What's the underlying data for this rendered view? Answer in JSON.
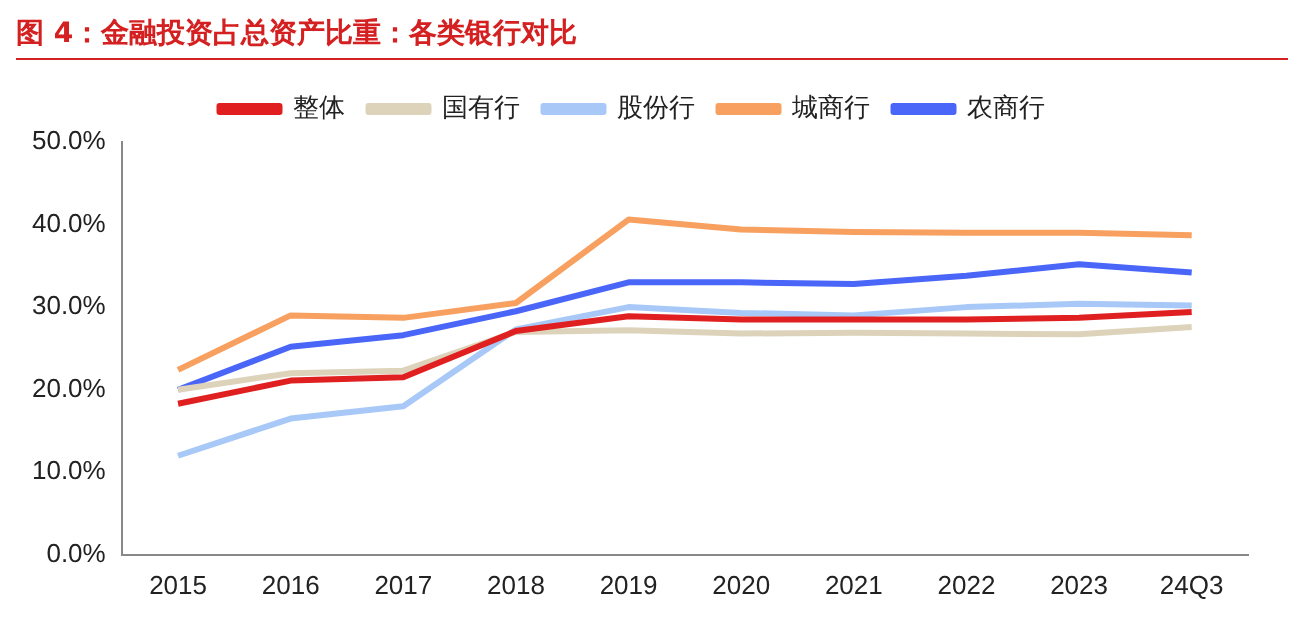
{
  "chart_data": {
    "type": "line",
    "title": "图 4：金融投资占总资产比重：各类银行对比",
    "categories": [
      "2015",
      "2016",
      "2017",
      "2018",
      "2019",
      "2020",
      "2021",
      "2022",
      "2023",
      "24Q3"
    ],
    "series": [
      {
        "name": "整体",
        "color": "#e02020",
        "values": [
          18.3,
          21.1,
          21.5,
          27.1,
          28.9,
          28.5,
          28.5,
          28.5,
          28.7,
          29.4
        ]
      },
      {
        "name": "国有行",
        "color": "#ddd3bb",
        "values": [
          20.0,
          22.0,
          22.3,
          27.0,
          27.2,
          26.8,
          26.9,
          26.8,
          26.7,
          27.6
        ]
      },
      {
        "name": "股份行",
        "color": "#a8c8f8",
        "values": [
          12.0,
          16.5,
          18.0,
          27.3,
          30.0,
          29.3,
          29.0,
          30.0,
          30.4,
          30.2
        ]
      },
      {
        "name": "城商行",
        "color": "#f8a060",
        "values": [
          22.4,
          29.0,
          28.7,
          30.5,
          40.6,
          39.4,
          39.1,
          39.0,
          39.0,
          38.7
        ]
      },
      {
        "name": "农商行",
        "color": "#4a66f8",
        "values": [
          20.0,
          25.2,
          26.6,
          29.5,
          33.0,
          33.0,
          32.8,
          33.8,
          35.2,
          34.2
        ]
      }
    ],
    "ylim": [
      0,
      50
    ],
    "yticks": [
      {
        "value": 0,
        "label": "0.0%"
      },
      {
        "value": 10,
        "label": "10.0%"
      },
      {
        "value": 20,
        "label": "20.0%"
      },
      {
        "value": 30,
        "label": "30.0%"
      },
      {
        "value": 40,
        "label": "40.0%"
      },
      {
        "value": 50,
        "label": "50.0%"
      }
    ],
    "grid": false,
    "legend": "top",
    "marker": "none",
    "line_style": "solid"
  }
}
